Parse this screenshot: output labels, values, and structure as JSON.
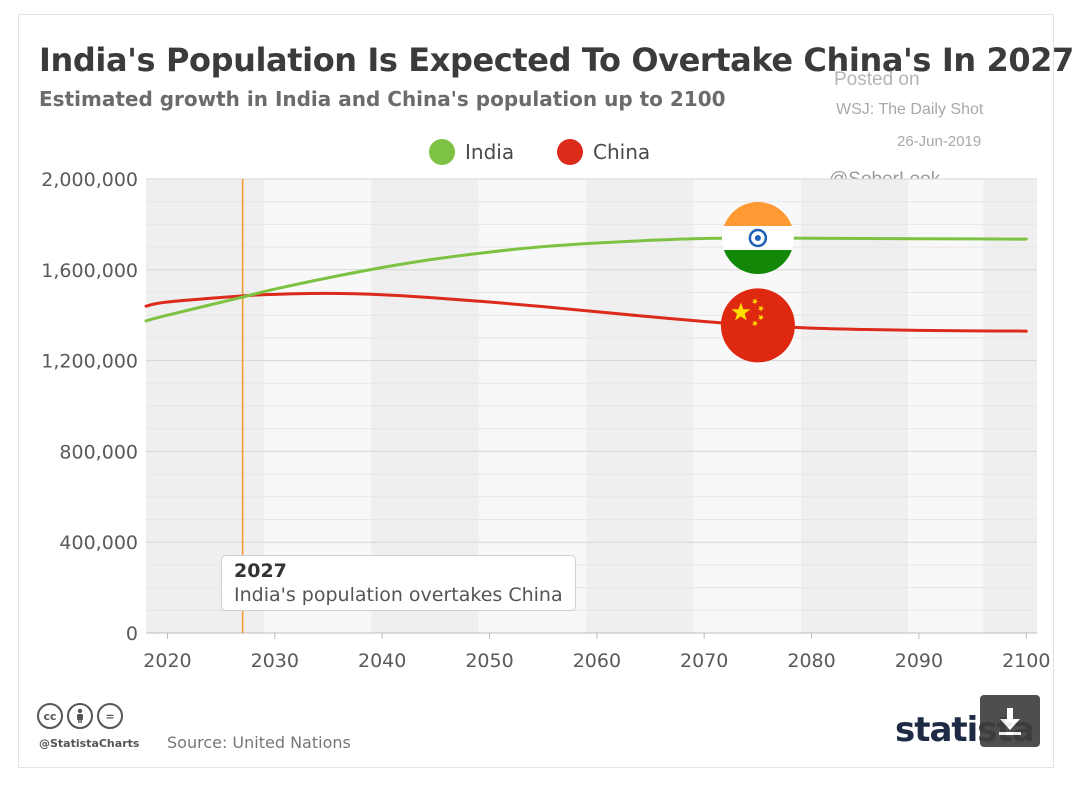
{
  "chart_data": {
    "type": "line",
    "title": "India's Population Is Expected To Overtake China's In 2027",
    "subtitle": "Estimated growth in India and China's population up to 2100",
    "xlim": [
      2018,
      2101
    ],
    "ylim": [
      0,
      2000000
    ],
    "x_ticks": [
      2020,
      2030,
      2040,
      2050,
      2060,
      2070,
      2080,
      2090,
      2100
    ],
    "x_tick_labels": [
      "2020",
      "2030",
      "2040",
      "2050",
      "2060",
      "2070",
      "2080",
      "2090",
      "2100"
    ],
    "y_ticks": [
      0,
      400000,
      800000,
      1200000,
      1600000,
      2000000
    ],
    "y_tick_labels": [
      "0",
      "400,000",
      "800,000",
      "1,200,000",
      "1,600,000",
      "2,000,000"
    ],
    "legend_position": "top-center",
    "grid": true,
    "x": [
      2018,
      2020,
      2027,
      2030,
      2035,
      2040,
      2045,
      2050,
      2055,
      2060,
      2065,
      2070,
      2075,
      2080,
      2085,
      2090,
      2095,
      2100
    ],
    "series": [
      {
        "name": "India",
        "color": "#7dc242",
        "values": [
          1375000,
          1400000,
          1480000,
          1515000,
          1565000,
          1610000,
          1648000,
          1678000,
          1702000,
          1718000,
          1730000,
          1738000,
          1740000,
          1739000,
          1738000,
          1737000,
          1736000,
          1735000
        ]
      },
      {
        "name": "China",
        "color": "#dc2a1b",
        "values": [
          1440000,
          1458000,
          1485000,
          1492000,
          1496000,
          1490000,
          1476000,
          1458000,
          1438000,
          1415000,
          1393000,
          1372000,
          1355000,
          1343000,
          1337000,
          1333000,
          1331000,
          1330000
        ]
      }
    ],
    "annotations": [
      {
        "x": 2027,
        "year": "2027",
        "text": "India's population overtakes China",
        "line_color": "#f39c34"
      }
    ]
  },
  "watermark": {
    "posted": "Posted on",
    "source": "WSJ: The Daily Shot",
    "date": "26-Jun-2019",
    "handle": "@SoberLook"
  },
  "footer": {
    "handle": "@StatistaCharts",
    "source": "Source: United Nations",
    "brand": "statista",
    "icons": [
      "cc-icon",
      "by-icon",
      "nd-icon"
    ],
    "cc_glyphs": [
      "cc",
      "",
      "="
    ]
  },
  "colors": {
    "band_shaded": "#efefef",
    "band_light": "#f8f8f8",
    "india_flag": [
      "#ff9933",
      "#ffffff",
      "#138808",
      "#1f5fb6"
    ],
    "china_flag": [
      "#de2910",
      "#ffde00"
    ]
  }
}
